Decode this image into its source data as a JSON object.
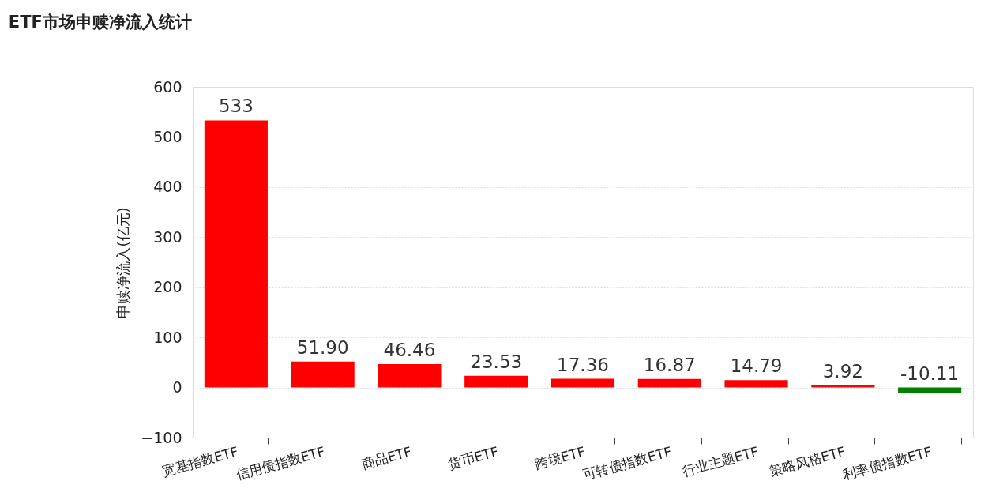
{
  "chart_data": {
    "type": "bar",
    "title": "ETF市场申赎净流入统计",
    "ylabel": "申赎净流入(亿元)",
    "categories": [
      "宽基指数ETF",
      "信用债指数ETF",
      "商品ETF",
      "货币ETF",
      "跨境ETF",
      "可转债指数ETF",
      "行业主题ETF",
      "策略风格ETF",
      "利率债指数ETF"
    ],
    "values": [
      533,
      51.9,
      46.46,
      23.53,
      17.36,
      16.87,
      14.79,
      3.92,
      -10.11
    ],
    "value_labels": [
      "533",
      "51.90",
      "46.46",
      "23.53",
      "17.36",
      "16.87",
      "14.79",
      "3.92",
      "-10.11"
    ],
    "colors": [
      "#ff0000",
      "#ff0000",
      "#ff0000",
      "#ff0000",
      "#ff0000",
      "#ff0000",
      "#ff0000",
      "#ff0000",
      "#008000"
    ],
    "ylim": [
      -100,
      600
    ],
    "yticks": [
      -100,
      0,
      100,
      200,
      300,
      400,
      500,
      600
    ],
    "grid": "y"
  }
}
